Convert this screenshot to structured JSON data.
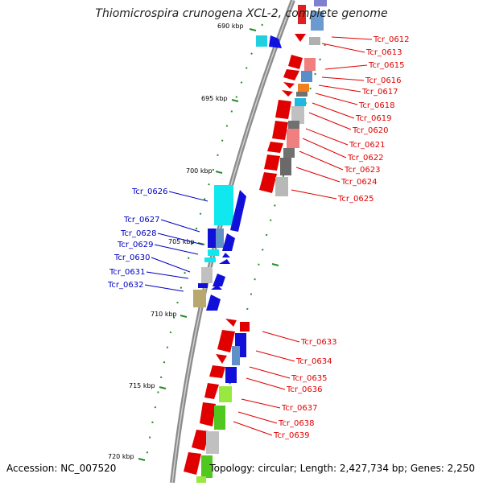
{
  "header": {
    "title": "Thiomicrospira crunogena XCL-2, complete genome"
  },
  "footer": {
    "accession": "Accession: NC_007520",
    "summary": "Topology: circular; Length: 2,427,734 bp; Genes: 2,250"
  },
  "colors": {
    "backbone": "#8a8a8a",
    "ruler": "#2a8a2a",
    "right_label": "#e00000",
    "left_label": "#0000c0"
  },
  "ruler_labels": [
    {
      "text": "690 kbp"
    },
    {
      "text": "695 kbp"
    },
    {
      "text": "700 kbp"
    },
    {
      "text": "705 kbp"
    },
    {
      "text": "710 kbp"
    },
    {
      "text": "715 kbp"
    },
    {
      "text": "720 kbp"
    }
  ],
  "right_genes": [
    "Tcr_0612",
    "Tcr_0613",
    "Tcr_0615",
    "Tcr_0616",
    "Tcr_0617",
    "Tcr_0618",
    "Tcr_0619",
    "Tcr_0620",
    "Tcr_0621",
    "Tcr_0622",
    "Tcr_0623",
    "Tcr_0624",
    "Tcr_0625",
    "Tcr_0633",
    "Tcr_0634",
    "Tcr_0635",
    "Tcr_0636",
    "Tcr_0637",
    "Tcr_0638",
    "Tcr_0639"
  ],
  "left_genes": [
    "Tcr_0626",
    "Tcr_0627",
    "Tcr_0628",
    "Tcr_0629",
    "Tcr_0630",
    "Tcr_0631",
    "Tcr_0632"
  ]
}
